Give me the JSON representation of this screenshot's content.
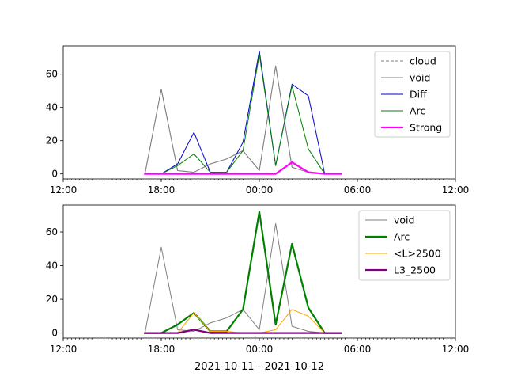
{
  "figure_xlabel": "2021-10-11 - 2021-10-12",
  "chart_data": [
    {
      "type": "line",
      "title": "",
      "xlabel": "",
      "ylabel": "",
      "x_unit": "hours relative to 2021-10-11 12:00",
      "xlim": [
        0,
        24
      ],
      "ylim": [
        -3,
        77
      ],
      "x_ticks": [
        {
          "value": 0,
          "label": "12:00"
        },
        {
          "value": 6,
          "label": "18:00"
        },
        {
          "value": 12,
          "label": "00:00"
        },
        {
          "value": 18,
          "label": "06:00"
        },
        {
          "value": 24,
          "label": "12:00"
        }
      ],
      "y_ticks": [
        0,
        20,
        40,
        60
      ],
      "legend_position": "top-right",
      "grid": false,
      "x": [
        5,
        6,
        7,
        8,
        9,
        10,
        11,
        12,
        13,
        14,
        15,
        16,
        17
      ],
      "series": [
        {
          "name": "cloud",
          "color": "#808080",
          "style": "dashed",
          "width": 1,
          "values": [
            0,
            51,
            2,
            1,
            6,
            9,
            14,
            2,
            65,
            4,
            1,
            0,
            0
          ]
        },
        {
          "name": "void",
          "color": "#808080",
          "style": "solid",
          "width": 1,
          "values": [
            0,
            51,
            2,
            1,
            6,
            9,
            14,
            2,
            65,
            4,
            1,
            0,
            0
          ]
        },
        {
          "name": "Diff",
          "color": "#0000cc",
          "style": "solid",
          "width": 1,
          "values": [
            0,
            0,
            6,
            25,
            1,
            1,
            19,
            74,
            5,
            54,
            47,
            0,
            0
          ]
        },
        {
          "name": "Arc",
          "color": "#008000",
          "style": "solid",
          "width": 1,
          "values": [
            0,
            0,
            5,
            12,
            1,
            1,
            14,
            72,
            5,
            53,
            15,
            0,
            0
          ]
        },
        {
          "name": "Strong",
          "color": "#ff00ff",
          "style": "solid",
          "width": 2.2,
          "values": [
            0,
            0,
            0,
            0,
            0,
            0,
            0,
            0,
            0,
            7,
            1,
            0,
            0
          ]
        }
      ]
    },
    {
      "type": "line",
      "title": "",
      "xlabel": "2021-10-11 - 2021-10-12",
      "ylabel": "",
      "x_unit": "hours relative to 2021-10-11 12:00",
      "xlim": [
        0,
        24
      ],
      "ylim": [
        -3,
        76
      ],
      "x_ticks": [
        {
          "value": 0,
          "label": "12:00"
        },
        {
          "value": 6,
          "label": "18:00"
        },
        {
          "value": 12,
          "label": "00:00"
        },
        {
          "value": 18,
          "label": "06:00"
        },
        {
          "value": 24,
          "label": "12:00"
        }
      ],
      "y_ticks": [
        0,
        20,
        40,
        60
      ],
      "legend_position": "top-right",
      "grid": false,
      "x": [
        5,
        6,
        7,
        8,
        9,
        10,
        11,
        12,
        13,
        14,
        15,
        16,
        17
      ],
      "series": [
        {
          "name": "void",
          "color": "#808080",
          "style": "solid",
          "width": 1,
          "values": [
            0,
            51,
            2,
            1,
            6,
            9,
            14,
            2,
            65,
            4,
            1,
            0,
            0
          ]
        },
        {
          "name": "Arc",
          "color": "#008000",
          "style": "solid",
          "width": 2.2,
          "values": [
            0,
            0,
            5,
            12,
            1,
            1,
            14,
            72,
            5,
            53,
            15,
            0,
            0
          ]
        },
        {
          "name": "<L>2500",
          "color": "#ffa500",
          "style": "solid",
          "width": 1,
          "values": [
            0,
            0,
            0,
            12,
            1,
            1,
            0,
            0,
            2,
            14,
            10,
            0,
            0
          ]
        },
        {
          "name": "L3_2500",
          "color": "#800080",
          "style": "solid",
          "width": 2.2,
          "values": [
            0,
            0,
            0,
            2,
            0,
            0,
            0,
            0,
            0,
            0,
            0,
            0,
            0
          ]
        }
      ]
    }
  ]
}
